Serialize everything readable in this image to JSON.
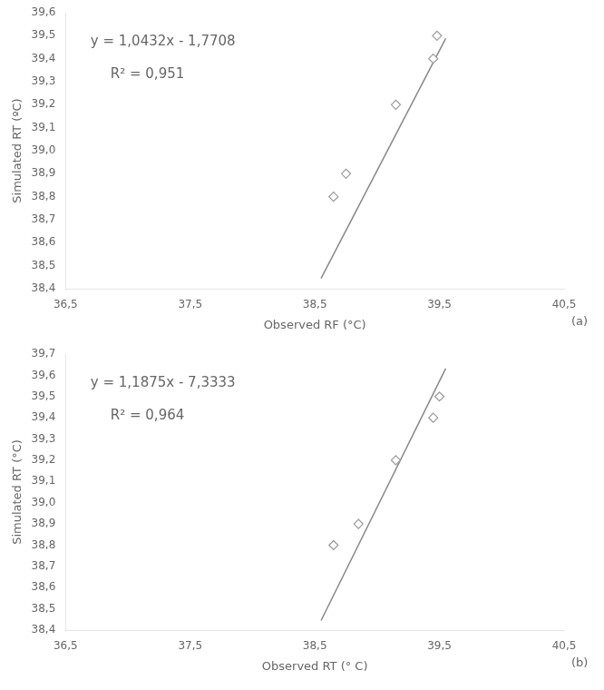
{
  "chart_data": [
    {
      "type": "scatter",
      "x_label": "Observed RF (°C)",
      "y_label": "Simulated RT (ºC)",
      "annotations": [
        "y = 1,0432x - 1,7708",
        "R² = 0,951"
      ],
      "panel_label": "(a)",
      "series": [
        {
          "type": "line",
          "color": "#888888",
          "x": [
            38.55,
            39.55
          ],
          "values": [
            38.44456,
            39.48776
          ]
        },
        {
          "type": "scatter",
          "marker": "diamond",
          "color": "#999999",
          "x": [
            38.65,
            38.75,
            39.15,
            39.45,
            39.48
          ],
          "values": [
            38.8,
            38.9,
            39.2,
            39.4,
            39.5
          ]
        }
      ],
      "xlim": [
        36.5,
        40.5
      ],
      "xticks": [
        {
          "value": 36.5,
          "label": "36,5"
        },
        {
          "value": 37.5,
          "label": "37,5"
        },
        {
          "value": 38.5,
          "label": "38,5"
        },
        {
          "value": 39.5,
          "label": "39,5"
        },
        {
          "value": 40.5,
          "label": "40,5"
        }
      ],
      "ylim": [
        38.4,
        39.6
      ],
      "yticks": [
        {
          "value": 38.4,
          "label": "38,4"
        },
        {
          "value": 38.5,
          "label": "38,5"
        },
        {
          "value": 38.6,
          "label": "38,6"
        },
        {
          "value": 38.7,
          "label": "38,7"
        },
        {
          "value": 38.8,
          "label": "38,8"
        },
        {
          "value": 38.9,
          "label": "38,9"
        },
        {
          "value": 39.0,
          "label": "39,0"
        },
        {
          "value": 39.1,
          "label": "39,1"
        },
        {
          "value": 39.2,
          "label": "39,2"
        },
        {
          "value": 39.3,
          "label": "39,3"
        },
        {
          "value": 39.4,
          "label": "39,4"
        },
        {
          "value": 39.5,
          "label": "39,5"
        },
        {
          "value": 39.6,
          "label": "39,6"
        }
      ],
      "grid": false
    },
    {
      "type": "scatter",
      "x_label": "Observed RT (° C)",
      "y_label": "Simulated RT (°C)",
      "annotations": [
        "y = 1,1875x - 7,3333",
        "R² = 0,964"
      ],
      "panel_label": "(b)",
      "series": [
        {
          "type": "line",
          "color": "#888888",
          "x": [
            38.55,
            39.55
          ],
          "values": [
            38.444825,
            39.632325
          ]
        },
        {
          "type": "scatter",
          "marker": "diamond",
          "color": "#999999",
          "x": [
            38.65,
            38.85,
            39.15,
            39.45,
            39.5
          ],
          "values": [
            38.8,
            38.9,
            39.2,
            39.4,
            39.5
          ]
        }
      ],
      "xlim": [
        36.5,
        40.5
      ],
      "xticks": [
        {
          "value": 36.5,
          "label": "36,5"
        },
        {
          "value": 37.5,
          "label": "37,5"
        },
        {
          "value": 38.5,
          "label": "38,5"
        },
        {
          "value": 39.5,
          "label": "39,5"
        },
        {
          "value": 40.5,
          "label": "40,5"
        }
      ],
      "ylim": [
        38.4,
        39.7
      ],
      "yticks": [
        {
          "value": 38.4,
          "label": "38,4"
        },
        {
          "value": 38.5,
          "label": "38,5"
        },
        {
          "value": 38.6,
          "label": "38,6"
        },
        {
          "value": 38.7,
          "label": "38,7"
        },
        {
          "value": 38.8,
          "label": "38,8"
        },
        {
          "value": 38.9,
          "label": "38,9"
        },
        {
          "value": 39.0,
          "label": "39,0"
        },
        {
          "value": 39.1,
          "label": "39,1"
        },
        {
          "value": 39.2,
          "label": "39,2"
        },
        {
          "value": 39.3,
          "label": "39,3"
        },
        {
          "value": 39.4,
          "label": "39,4"
        },
        {
          "value": 39.5,
          "label": "39,5"
        },
        {
          "value": 39.6,
          "label": "39,6"
        },
        {
          "value": 39.7,
          "label": "39,7"
        }
      ],
      "grid": false
    }
  ]
}
